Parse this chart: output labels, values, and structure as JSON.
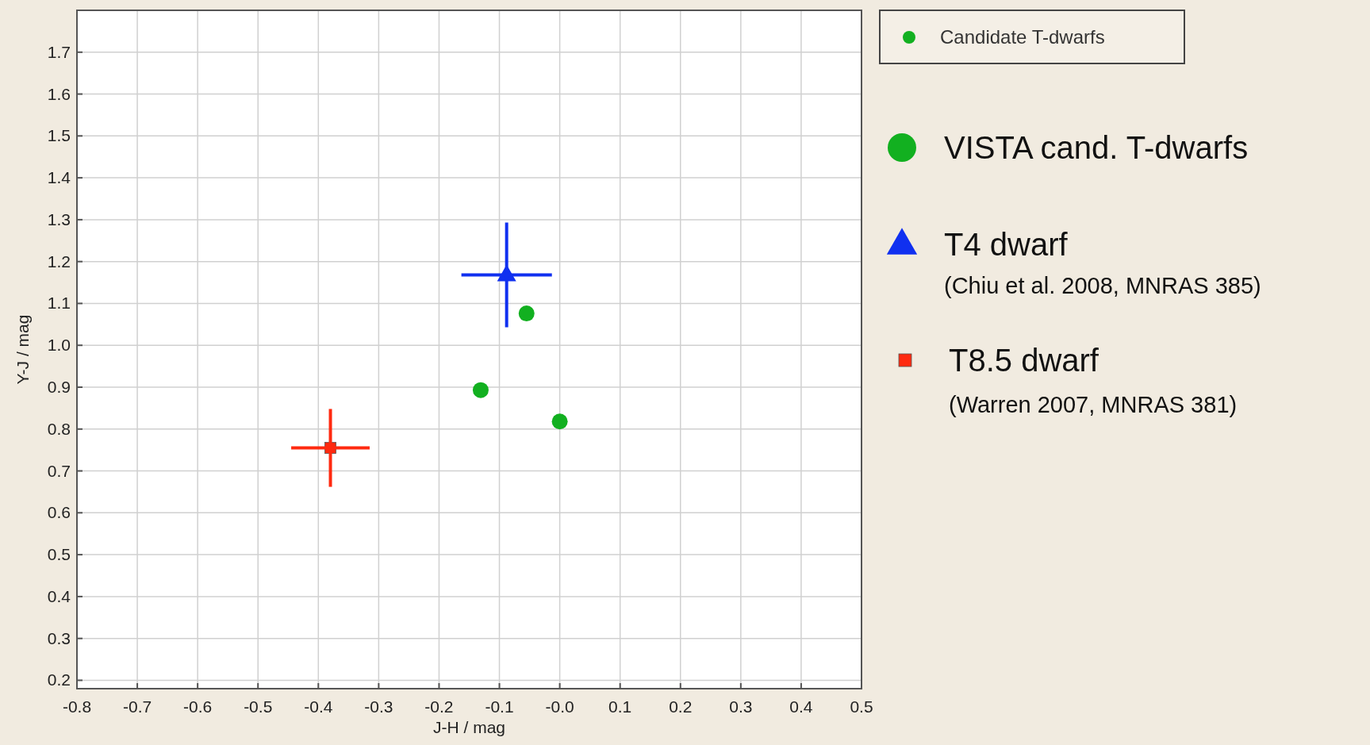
{
  "chart_data": {
    "type": "scatter",
    "xlabel": "J-H / mag",
    "ylabel": "Y-J / mag",
    "xlim": [
      -0.8,
      0.5
    ],
    "ylim": [
      0.18,
      1.8
    ],
    "xticks": [
      -0.8,
      -0.7,
      -0.6,
      -0.5,
      -0.4,
      -0.3,
      -0.2,
      -0.1,
      {
        "value": 0,
        "label": "-0.0"
      },
      0.1,
      0.2,
      0.3,
      0.4,
      0.5
    ],
    "yticks": [
      0.2,
      0.3,
      0.4,
      0.5,
      0.6,
      0.7,
      0.8,
      0.9,
      {
        "value": 1,
        "label": "1.0"
      },
      1.1,
      1.2,
      1.3,
      1.4,
      1.5,
      1.6,
      1.7
    ],
    "grid": true,
    "legend": "top right",
    "series": [
      {
        "name": "Candidate T-dwarfs",
        "color": "#12b020",
        "marker": "circle",
        "x": [
          -0.055,
          -0.131,
          0.0
        ],
        "values": [
          1.076,
          0.893,
          0.818
        ]
      },
      {
        "color": "#1030f0",
        "marker": "triangle",
        "x": [
          -0.088
        ],
        "values": [
          1.168
        ],
        "errors": [
          0.125
        ],
        "xerrors": [
          0.075
        ]
      },
      {
        "color": "#ff2a10",
        "marker": "square",
        "x": [
          -0.38
        ],
        "values": [
          0.755
        ],
        "errors": [
          0.093
        ],
        "xerrors": [
          0.065
        ]
      }
    ],
    "annotations": [
      "VISTA cand. T-dwarfs",
      "T4 dwarf",
      "(Chiu et al. 2008, MNRAS 385)",
      "T8.5 dwarf",
      "(Warren 2007, MNRAS 381)"
    ]
  }
}
